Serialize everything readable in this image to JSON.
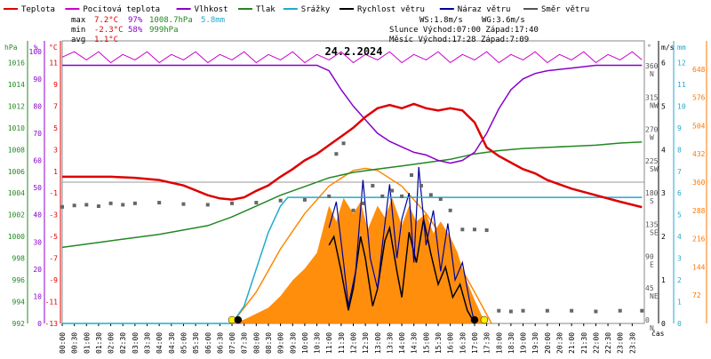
{
  "chart_data": {
    "type": "line",
    "title": "24.2.2024",
    "legend": [
      {
        "label": "Teplota",
        "color": "#dd0000"
      },
      {
        "label": "Pocitová teplota",
        "color": "#cc00cc"
      },
      {
        "label": "Vlhkost",
        "color": "#8800cc"
      },
      {
        "label": "Tlak",
        "color": "#228822"
      },
      {
        "label": "Srážky",
        "color": "#22aacc"
      },
      {
        "label": "Rychlost větru",
        "color": "#000000"
      },
      {
        "label": "Náraz větru",
        "color": "#000099"
      },
      {
        "label": "Směr větru",
        "color": "#555555"
      }
    ],
    "stats": {
      "max_label": "max",
      "max_temp": "7.2°C",
      "max_hum": "97%",
      "max_press": "1008.7hPa",
      "rain": "5.8mm",
      "min_label": "min",
      "min_temp": "-2.3°C",
      "min_hum": "58%",
      "min_press": "999hPa",
      "avg_label": "avg",
      "avg_temp": "1.1°C",
      "ws": "WS:1.8m/s",
      "wg": "WG:3.6m/s",
      "sun": "Slunce Východ:07:00 Západ:17:40",
      "moon": "Měsíc Východ:17:28 Západ:7:09"
    },
    "axis_units": {
      "hpa": "hPa",
      "pct": "%",
      "degc": "°C",
      "deg": "°",
      "ms": "m/s",
      "mm": "mm",
      "time": "čas"
    },
    "y_hpa_ticks": [
      "1016",
      "1014",
      "1012",
      "1010",
      "1008",
      "1006",
      "1004",
      "1002",
      "1000",
      "998",
      "996",
      "994",
      "992"
    ],
    "y_pct_ticks": [
      "100",
      "90",
      "80",
      "70",
      "60",
      "50",
      "40",
      "30",
      "20",
      "10",
      "0"
    ],
    "y_temp_ticks": [
      "11",
      "9",
      "7",
      "5",
      "3",
      "1",
      "-1",
      "-3",
      "-5",
      "-7",
      "-9",
      "-11",
      "-13"
    ],
    "y_dir_ticks": [
      {
        "deg": "360",
        "dir": "N"
      },
      {
        "deg": "315",
        "dir": "NW"
      },
      {
        "deg": "270",
        "dir": "W"
      },
      {
        "deg": "225",
        "dir": "SW"
      },
      {
        "deg": "180",
        "dir": "S"
      },
      {
        "deg": "135",
        "dir": "SE"
      },
      {
        "deg": "90",
        "dir": "E"
      },
      {
        "deg": "45",
        "dir": "NE"
      },
      {
        "deg": "0",
        "dir": "N"
      }
    ],
    "y_ms_ticks": [
      "6",
      "5",
      "4",
      "3",
      "2",
      "1",
      "0"
    ],
    "y_mm_ticks": [
      "12",
      "11",
      "10",
      "9",
      "8",
      "7",
      "6",
      "5",
      "4",
      "3",
      "2",
      "1",
      "0"
    ],
    "y_wm_ticks": [
      "648",
      "576",
      "504",
      "432",
      "360",
      "288",
      "216",
      "144",
      "72"
    ],
    "x_ticks": [
      "00:00",
      "00:30",
      "01:00",
      "01:30",
      "02:00",
      "02:30",
      "03:00",
      "03:30",
      "04:00",
      "04:30",
      "05:00",
      "05:30",
      "06:00",
      "06:30",
      "07:00",
      "07:30",
      "08:00",
      "08:30",
      "09:00",
      "09:30",
      "10:00",
      "10:30",
      "11:00",
      "11:30",
      "12:00",
      "12:30",
      "13:00",
      "13:30",
      "14:00",
      "14:30",
      "15:00",
      "15:30",
      "16:00",
      "16:30",
      "17:00",
      "17:30",
      "18:00",
      "18:30",
      "19:00",
      "19:30",
      "20:00",
      "20:30",
      "21:00",
      "21:30",
      "22:00",
      "22:30",
      "23:00",
      "23:30"
    ],
    "series": {
      "temperature_c": [
        [
          0,
          0.5
        ],
        [
          1,
          0.5
        ],
        [
          2,
          0.5
        ],
        [
          3,
          0.4
        ],
        [
          4,
          0.2
        ],
        [
          5,
          -0.3
        ],
        [
          6,
          -1.2
        ],
        [
          6.5,
          -1.5
        ],
        [
          7,
          -1.6
        ],
        [
          7.5,
          -1.4
        ],
        [
          8,
          -0.8
        ],
        [
          8.5,
          -0.3
        ],
        [
          9,
          0.5
        ],
        [
          9.5,
          1.2
        ],
        [
          10,
          2.0
        ],
        [
          10.5,
          2.6
        ],
        [
          11,
          3.4
        ],
        [
          11.5,
          4.2
        ],
        [
          12,
          5.0
        ],
        [
          12.5,
          6.0
        ],
        [
          13,
          6.8
        ],
        [
          13.5,
          7.1
        ],
        [
          14,
          6.8
        ],
        [
          14.5,
          7.2
        ],
        [
          15,
          6.8
        ],
        [
          15.5,
          6.6
        ],
        [
          16,
          6.8
        ],
        [
          16.5,
          6.6
        ],
        [
          17,
          5.5
        ],
        [
          17.5,
          3.2
        ],
        [
          18,
          2.4
        ],
        [
          18.5,
          1.8
        ],
        [
          19,
          1.2
        ],
        [
          19.5,
          0.8
        ],
        [
          20,
          0.2
        ],
        [
          21,
          -0.6
        ],
        [
          22,
          -1.2
        ],
        [
          23,
          -1.8
        ],
        [
          23.9,
          -2.3
        ]
      ],
      "apparent_temp_pct": [
        [
          0,
          98
        ],
        [
          0.5,
          100
        ],
        [
          1,
          97
        ],
        [
          1.5,
          100
        ],
        [
          2,
          96
        ],
        [
          2.5,
          99
        ],
        [
          3,
          97
        ],
        [
          3.5,
          100
        ],
        [
          4,
          96
        ],
        [
          4.5,
          99
        ],
        [
          5,
          97
        ],
        [
          5.5,
          100
        ],
        [
          6,
          96
        ],
        [
          6.5,
          99
        ],
        [
          7,
          97
        ],
        [
          7.5,
          100
        ],
        [
          8,
          96
        ],
        [
          8.5,
          99
        ],
        [
          9,
          97
        ],
        [
          9.5,
          100
        ],
        [
          10,
          96
        ],
        [
          10.5,
          99
        ],
        [
          11,
          97
        ],
        [
          11.5,
          100
        ],
        [
          12,
          96
        ],
        [
          12.5,
          99
        ],
        [
          13,
          97
        ],
        [
          13.5,
          100
        ],
        [
          14,
          96
        ],
        [
          14.5,
          99
        ],
        [
          15,
          97
        ],
        [
          15.5,
          100
        ],
        [
          16,
          96
        ],
        [
          16.5,
          99
        ],
        [
          17,
          97
        ],
        [
          17.5,
          100
        ],
        [
          18,
          96
        ],
        [
          18.5,
          99
        ],
        [
          19,
          97
        ],
        [
          19.5,
          100
        ],
        [
          20,
          96
        ],
        [
          20.5,
          99
        ],
        [
          21,
          97
        ],
        [
          21.5,
          100
        ],
        [
          22,
          96
        ],
        [
          22.5,
          99
        ],
        [
          23,
          97
        ],
        [
          23.5,
          100
        ],
        [
          23.9,
          97
        ]
      ],
      "humidity_pct": [
        [
          0,
          95
        ],
        [
          10.5,
          95
        ],
        [
          11,
          93
        ],
        [
          11.5,
          86
        ],
        [
          12,
          80
        ],
        [
          12.5,
          75
        ],
        [
          13,
          70
        ],
        [
          13.5,
          67
        ],
        [
          14,
          65
        ],
        [
          14.5,
          63
        ],
        [
          15,
          62
        ],
        [
          15.5,
          60
        ],
        [
          16,
          59
        ],
        [
          16.5,
          60
        ],
        [
          17,
          63
        ],
        [
          17.5,
          70
        ],
        [
          18,
          79
        ],
        [
          18.5,
          86
        ],
        [
          19,
          90
        ],
        [
          19.5,
          92
        ],
        [
          20,
          93
        ],
        [
          21,
          94
        ],
        [
          22,
          95
        ],
        [
          23.9,
          95
        ]
      ],
      "pressure_hpa": [
        [
          0,
          999.0
        ],
        [
          2,
          999.6
        ],
        [
          4,
          1000.2
        ],
        [
          6,
          1001.0
        ],
        [
          7,
          1001.8
        ],
        [
          8,
          1002.8
        ],
        [
          9,
          1003.8
        ],
        [
          10,
          1004.6
        ],
        [
          11,
          1005.4
        ],
        [
          12,
          1005.9
        ],
        [
          13,
          1006.2
        ],
        [
          14,
          1006.5
        ],
        [
          15,
          1006.8
        ],
        [
          16,
          1007.1
        ],
        [
          17,
          1007.6
        ],
        [
          18,
          1007.9
        ],
        [
          19,
          1008.1
        ],
        [
          20,
          1008.2
        ],
        [
          21,
          1008.3
        ],
        [
          22,
          1008.4
        ],
        [
          23,
          1008.6
        ],
        [
          23.9,
          1008.7
        ]
      ],
      "rain_mm": [
        [
          0,
          0
        ],
        [
          7,
          0
        ],
        [
          7.5,
          0.8
        ],
        [
          8,
          2.5
        ],
        [
          8.5,
          4.2
        ],
        [
          9,
          5.4
        ],
        [
          9.3,
          5.8
        ],
        [
          23.9,
          5.8
        ]
      ],
      "wind_speed_ms": [
        [
          11,
          1.8
        ],
        [
          11.2,
          2.0
        ],
        [
          11.5,
          1.2
        ],
        [
          11.8,
          0.3
        ],
        [
          12,
          0.8
        ],
        [
          12.3,
          2.0
        ],
        [
          12.5,
          1.5
        ],
        [
          12.8,
          0.4
        ],
        [
          13,
          0.8
        ],
        [
          13.3,
          1.9
        ],
        [
          13.5,
          2.2
        ],
        [
          13.8,
          1.2
        ],
        [
          14,
          0.6
        ],
        [
          14.3,
          2.1
        ],
        [
          14.6,
          1.4
        ],
        [
          14.9,
          2.4
        ],
        [
          15.2,
          1.6
        ],
        [
          15.5,
          0.9
        ],
        [
          15.8,
          1.3
        ],
        [
          16.1,
          0.6
        ],
        [
          16.4,
          0.9
        ],
        [
          16.7,
          0.3
        ],
        [
          17,
          0
        ]
      ],
      "wind_gust_ms": [
        [
          11,
          2.2
        ],
        [
          11.3,
          2.8
        ],
        [
          11.6,
          1.4
        ],
        [
          11.8,
          0.4
        ],
        [
          12.1,
          1.2
        ],
        [
          12.4,
          3.3
        ],
        [
          12.7,
          1.5
        ],
        [
          13,
          0.8
        ],
        [
          13.2,
          1.8
        ],
        [
          13.5,
          3.2
        ],
        [
          13.8,
          1.5
        ],
        [
          14,
          2.4
        ],
        [
          14.3,
          3.0
        ],
        [
          14.5,
          1.4
        ],
        [
          14.7,
          3.6
        ],
        [
          15,
          1.8
        ],
        [
          15.3,
          2.6
        ],
        [
          15.6,
          1.2
        ],
        [
          15.9,
          2.3
        ],
        [
          16.2,
          1.0
        ],
        [
          16.5,
          1.4
        ],
        [
          16.8,
          0.5
        ],
        [
          17,
          0
        ]
      ],
      "wind_dir_deg": [
        [
          0,
          165
        ],
        [
          0.5,
          167
        ],
        [
          1,
          168
        ],
        [
          1.5,
          166
        ],
        [
          2,
          170
        ],
        [
          2.5,
          168
        ],
        [
          3,
          170
        ],
        [
          4,
          171
        ],
        [
          5,
          169
        ],
        [
          6,
          168
        ],
        [
          7,
          170
        ],
        [
          8,
          171
        ],
        [
          9,
          174
        ],
        [
          10,
          175
        ],
        [
          11,
          180
        ],
        [
          11.3,
          240
        ],
        [
          11.6,
          255
        ],
        [
          12,
          160
        ],
        [
          12.4,
          170
        ],
        [
          12.8,
          195
        ],
        [
          13.2,
          180
        ],
        [
          13.6,
          188
        ],
        [
          14,
          180
        ],
        [
          14.4,
          210
        ],
        [
          14.8,
          195
        ],
        [
          15.2,
          182
        ],
        [
          15.6,
          176
        ],
        [
          16,
          160
        ],
        [
          16.5,
          133
        ],
        [
          17,
          133
        ],
        [
          17.5,
          132
        ],
        [
          18,
          18
        ],
        [
          18.5,
          17
        ],
        [
          19,
          18
        ],
        [
          20,
          18
        ],
        [
          21,
          18
        ],
        [
          22,
          17
        ],
        [
          23,
          18
        ],
        [
          23.9,
          18
        ]
      ],
      "solar_wm2": [
        [
          7,
          0
        ],
        [
          7.5,
          10
        ],
        [
          8,
          25
        ],
        [
          8.5,
          40
        ],
        [
          9,
          70
        ],
        [
          9.5,
          110
        ],
        [
          10,
          140
        ],
        [
          10.5,
          180
        ],
        [
          11,
          300
        ],
        [
          11.3,
          260
        ],
        [
          11.6,
          320
        ],
        [
          12,
          280
        ],
        [
          12.3,
          310
        ],
        [
          12.6,
          240
        ],
        [
          13,
          300
        ],
        [
          13.3,
          270
        ],
        [
          13.6,
          320
        ],
        [
          14,
          250
        ],
        [
          14.3,
          300
        ],
        [
          14.6,
          260
        ],
        [
          15,
          280
        ],
        [
          15.3,
          230
        ],
        [
          15.6,
          260
        ],
        [
          16,
          220
        ],
        [
          16.3,
          180
        ],
        [
          16.6,
          120
        ],
        [
          17,
          60
        ],
        [
          17.3,
          20
        ],
        [
          17.5,
          0
        ]
      ],
      "solar_theoretical_wm2": [
        [
          7,
          0
        ],
        [
          8,
          80
        ],
        [
          9,
          190
        ],
        [
          10,
          280
        ],
        [
          11,
          350
        ],
        [
          12,
          390
        ],
        [
          12.5,
          395
        ],
        [
          13,
          390
        ],
        [
          14,
          350
        ],
        [
          15,
          280
        ],
        [
          16,
          190
        ],
        [
          17,
          80
        ],
        [
          17.7,
          0
        ]
      ]
    },
    "ranges": {
      "x": [
        0,
        24
      ],
      "temp_c": [
        -13,
        13
      ],
      "pct": [
        0,
        104
      ],
      "hpa": [
        992,
        1018
      ],
      "ms": [
        0,
        6.5
      ],
      "mm": [
        0,
        13
      ],
      "dir_deg": [
        0,
        400
      ],
      "wm2": [
        0,
        720
      ]
    },
    "grid": false
  }
}
